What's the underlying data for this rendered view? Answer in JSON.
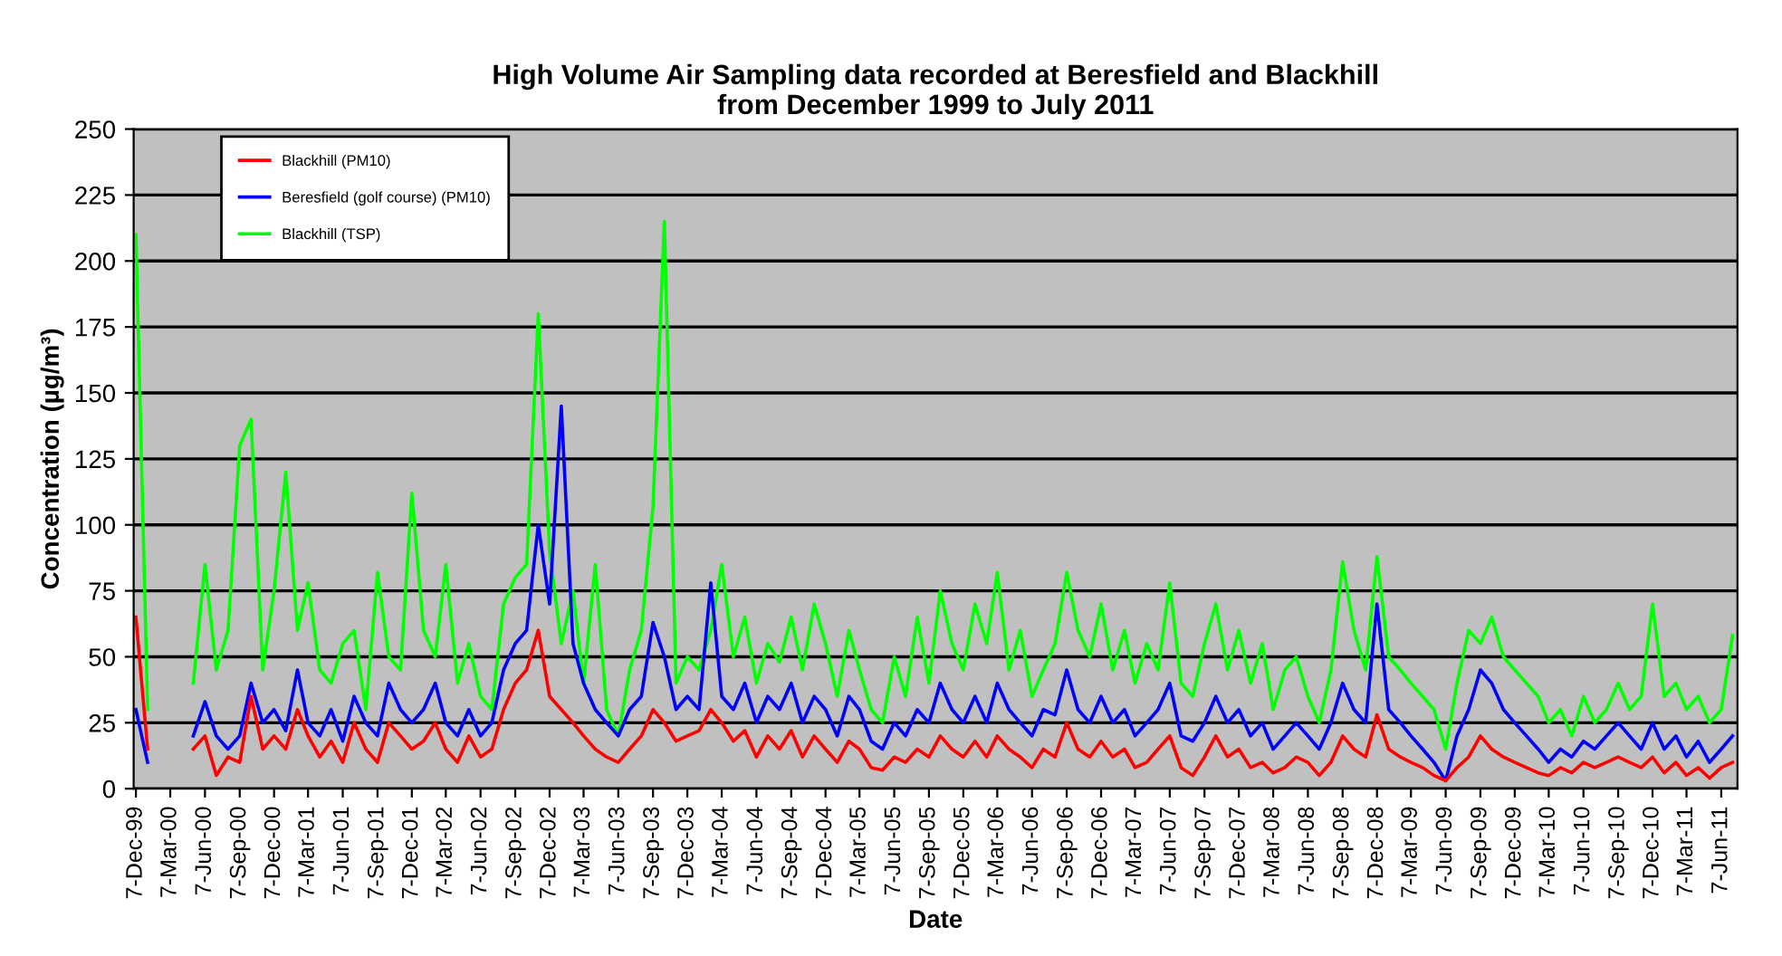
{
  "chart_data": {
    "type": "line",
    "title": "High Volume Air Sampling data recorded at Beresfield and Blackhill\nfrom December 1999 to July 2011",
    "xlabel": "Date",
    "ylabel": "Concentration (µg/m³)",
    "x": [
      "1999-12-07",
      "2000-01-07",
      "2000-02-07",
      "2000-03-07",
      "2000-04-07",
      "2000-05-07",
      "2000-06-07",
      "2000-07-07",
      "2000-08-07",
      "2000-09-07",
      "2000-10-07",
      "2000-11-07",
      "2000-12-07",
      "2001-01-07",
      "2001-02-07",
      "2001-03-07",
      "2001-04-07",
      "2001-05-07",
      "2001-06-07",
      "2001-07-07",
      "2001-08-07",
      "2001-09-07",
      "2001-10-07",
      "2001-11-07",
      "2001-12-07",
      "2002-01-07",
      "2002-02-07",
      "2002-03-07",
      "2002-04-07",
      "2002-05-07",
      "2002-06-07",
      "2002-07-07",
      "2002-08-07",
      "2002-09-07",
      "2002-10-07",
      "2002-11-07",
      "2002-12-07",
      "2003-01-07",
      "2003-02-07",
      "2003-03-07",
      "2003-04-07",
      "2003-05-07",
      "2003-06-07",
      "2003-07-07",
      "2003-08-07",
      "2003-09-07",
      "2003-10-07",
      "2003-11-07",
      "2003-12-07",
      "2004-01-07",
      "2004-02-07",
      "2004-03-07",
      "2004-04-07",
      "2004-05-07",
      "2004-06-07",
      "2004-07-07",
      "2004-08-07",
      "2004-09-07",
      "2004-10-07",
      "2004-11-07",
      "2004-12-07",
      "2005-01-07",
      "2005-02-07",
      "2005-03-07",
      "2005-04-07",
      "2005-05-07",
      "2005-06-07",
      "2005-07-07",
      "2005-08-07",
      "2005-09-07",
      "2005-10-07",
      "2005-11-07",
      "2005-12-07",
      "2006-01-07",
      "2006-02-07",
      "2006-03-07",
      "2006-04-07",
      "2006-05-07",
      "2006-06-07",
      "2006-07-07",
      "2006-08-07",
      "2006-09-07",
      "2006-10-07",
      "2006-11-07",
      "2006-12-07",
      "2007-01-07",
      "2007-02-07",
      "2007-03-07",
      "2007-04-07",
      "2007-05-07",
      "2007-06-07",
      "2007-07-07",
      "2007-08-07",
      "2007-09-07",
      "2007-10-07",
      "2007-11-07",
      "2007-12-07",
      "2008-01-07",
      "2008-02-07",
      "2008-03-07",
      "2008-04-07",
      "2008-05-07",
      "2008-06-07",
      "2008-07-07",
      "2008-08-07",
      "2008-09-07",
      "2008-10-07",
      "2008-11-07",
      "2008-12-07",
      "2009-01-07",
      "2009-02-07",
      "2009-03-07",
      "2009-04-07",
      "2009-05-07",
      "2009-06-07",
      "2009-07-07",
      "2009-08-07",
      "2009-09-07",
      "2009-10-07",
      "2009-11-07",
      "2009-12-07",
      "2010-01-07",
      "2010-02-07",
      "2010-03-07",
      "2010-04-07",
      "2010-05-07",
      "2010-06-07",
      "2010-07-07",
      "2010-08-07",
      "2010-09-07",
      "2010-10-07",
      "2010-11-07",
      "2010-12-07",
      "2011-01-07",
      "2011-02-07",
      "2011-03-07",
      "2011-04-07",
      "2011-05-07",
      "2011-06-07",
      "2011-07-07"
    ],
    "series": [
      {
        "name": "Blackhill (PM10)",
        "color": "#ff0000",
        "values": [
          65,
          15,
          null,
          null,
          null,
          15,
          20,
          5,
          12,
          10,
          35,
          15,
          20,
          15,
          30,
          20,
          12,
          18,
          10,
          25,
          15,
          10,
          25,
          20,
          15,
          18,
          25,
          15,
          10,
          20,
          12,
          15,
          30,
          40,
          45,
          60,
          35,
          30,
          25,
          20,
          15,
          12,
          10,
          15,
          20,
          30,
          25,
          18,
          20,
          22,
          30,
          25,
          18,
          22,
          12,
          20,
          15,
          22,
          12,
          20,
          15,
          10,
          18,
          15,
          8,
          7,
          12,
          10,
          15,
          12,
          20,
          15,
          12,
          18,
          12,
          20,
          15,
          12,
          8,
          15,
          12,
          25,
          15,
          12,
          18,
          12,
          15,
          8,
          10,
          15,
          20,
          8,
          5,
          12,
          20,
          12,
          15,
          8,
          10,
          6,
          8,
          12,
          10,
          5,
          10,
          20,
          15,
          12,
          28,
          15,
          12,
          10,
          8,
          5,
          3,
          8,
          12,
          20,
          15,
          12,
          10,
          8,
          6,
          5,
          8,
          6,
          10,
          8,
          10,
          12,
          10,
          8,
          12,
          6,
          10,
          5,
          8,
          4,
          8,
          10
        ]
      },
      {
        "name": "Beresfield (golf course) (PM10)",
        "color": "#0000ff",
        "values": [
          30,
          10,
          null,
          null,
          null,
          20,
          33,
          20,
          15,
          20,
          40,
          25,
          30,
          22,
          45,
          25,
          20,
          30,
          18,
          35,
          25,
          20,
          40,
          30,
          25,
          30,
          40,
          25,
          20,
          30,
          20,
          25,
          45,
          55,
          60,
          100,
          70,
          145,
          55,
          40,
          30,
          25,
          20,
          30,
          35,
          63,
          50,
          30,
          35,
          30,
          78,
          35,
          30,
          40,
          25,
          35,
          30,
          40,
          25,
          35,
          30,
          20,
          35,
          30,
          18,
          15,
          25,
          20,
          30,
          25,
          40,
          30,
          25,
          35,
          25,
          40,
          30,
          25,
          20,
          30,
          28,
          45,
          30,
          25,
          35,
          25,
          30,
          20,
          25,
          30,
          40,
          20,
          18,
          25,
          35,
          25,
          30,
          20,
          25,
          15,
          20,
          25,
          20,
          15,
          25,
          40,
          30,
          25,
          70,
          30,
          25,
          20,
          15,
          10,
          3,
          20,
          30,
          45,
          40,
          30,
          25,
          20,
          15,
          10,
          15,
          12,
          18,
          15,
          20,
          25,
          20,
          15,
          25,
          15,
          20,
          12,
          18,
          10,
          15,
          20
        ]
      },
      {
        "name": "Blackhill (TSP)",
        "color": "#00ff00",
        "values": [
          210,
          30,
          null,
          null,
          null,
          40,
          85,
          45,
          60,
          130,
          140,
          45,
          75,
          120,
          60,
          78,
          45,
          40,
          55,
          60,
          30,
          82,
          50,
          45,
          112,
          60,
          50,
          85,
          40,
          55,
          35,
          30,
          70,
          80,
          85,
          180,
          90,
          55,
          75,
          40,
          85,
          30,
          20,
          45,
          60,
          107,
          215,
          40,
          50,
          45,
          60,
          85,
          50,
          65,
          40,
          55,
          48,
          65,
          45,
          70,
          55,
          35,
          60,
          45,
          30,
          25,
          50,
          35,
          65,
          40,
          75,
          55,
          45,
          70,
          55,
          82,
          45,
          60,
          35,
          45,
          55,
          82,
          60,
          50,
          70,
          45,
          60,
          40,
          55,
          45,
          78,
          40,
          35,
          55,
          70,
          45,
          60,
          40,
          55,
          30,
          45,
          50,
          35,
          25,
          45,
          86,
          60,
          45,
          88,
          50,
          45,
          40,
          35,
          30,
          15,
          40,
          60,
          55,
          65,
          50,
          45,
          40,
          35,
          25,
          30,
          20,
          35,
          25,
          30,
          40,
          30,
          35,
          70,
          35,
          40,
          30,
          35,
          25,
          30,
          58
        ]
      }
    ],
    "xlim": [
      "1999-12-01",
      "2011-07-20"
    ],
    "xticks": [
      {
        "value": "1999-12-07",
        "label": "7-Dec-99"
      },
      {
        "value": "2000-03-07",
        "label": "7-Mar-00"
      },
      {
        "value": "2000-06-07",
        "label": "7-Jun-00"
      },
      {
        "value": "2000-09-07",
        "label": "7-Sep-00"
      },
      {
        "value": "2000-12-07",
        "label": "7-Dec-00"
      },
      {
        "value": "2001-03-07",
        "label": "7-Mar-01"
      },
      {
        "value": "2001-06-07",
        "label": "7-Jun-01"
      },
      {
        "value": "2001-09-07",
        "label": "7-Sep-01"
      },
      {
        "value": "2001-12-07",
        "label": "7-Dec-01"
      },
      {
        "value": "2002-03-07",
        "label": "7-Mar-02"
      },
      {
        "value": "2002-06-07",
        "label": "7-Jun-02"
      },
      {
        "value": "2002-09-07",
        "label": "7-Sep-02"
      },
      {
        "value": "2002-12-07",
        "label": "7-Dec-02"
      },
      {
        "value": "2003-03-07",
        "label": "7-Mar-03"
      },
      {
        "value": "2003-06-07",
        "label": "7-Jun-03"
      },
      {
        "value": "2003-09-07",
        "label": "7-Sep-03"
      },
      {
        "value": "2003-12-07",
        "label": "7-Dec-03"
      },
      {
        "value": "2004-03-07",
        "label": "7-Mar-04"
      },
      {
        "value": "2004-06-07",
        "label": "7-Jun-04"
      },
      {
        "value": "2004-09-07",
        "label": "7-Sep-04"
      },
      {
        "value": "2004-12-07",
        "label": "7-Dec-04"
      },
      {
        "value": "2005-03-07",
        "label": "7-Mar-05"
      },
      {
        "value": "2005-06-07",
        "label": "7-Jun-05"
      },
      {
        "value": "2005-09-07",
        "label": "7-Sep-05"
      },
      {
        "value": "2005-12-07",
        "label": "7-Dec-05"
      },
      {
        "value": "2006-03-07",
        "label": "7-Mar-06"
      },
      {
        "value": "2006-06-07",
        "label": "7-Jun-06"
      },
      {
        "value": "2006-09-07",
        "label": "7-Sep-06"
      },
      {
        "value": "2006-12-07",
        "label": "7-Dec-06"
      },
      {
        "value": "2007-03-07",
        "label": "7-Mar-07"
      },
      {
        "value": "2007-06-07",
        "label": "7-Jun-07"
      },
      {
        "value": "2007-09-07",
        "label": "7-Sep-07"
      },
      {
        "value": "2007-12-07",
        "label": "7-Dec-07"
      },
      {
        "value": "2008-03-07",
        "label": "7-Mar-08"
      },
      {
        "value": "2008-06-07",
        "label": "7-Jun-08"
      },
      {
        "value": "2008-09-07",
        "label": "7-Sep-08"
      },
      {
        "value": "2008-12-07",
        "label": "7-Dec-08"
      },
      {
        "value": "2009-03-07",
        "label": "7-Mar-09"
      },
      {
        "value": "2009-06-07",
        "label": "7-Jun-09"
      },
      {
        "value": "2009-09-07",
        "label": "7-Sep-09"
      },
      {
        "value": "2009-12-07",
        "label": "7-Dec-09"
      },
      {
        "value": "2010-03-07",
        "label": "7-Mar-10"
      },
      {
        "value": "2010-06-07",
        "label": "7-Jun-10"
      },
      {
        "value": "2010-09-07",
        "label": "7-Sep-10"
      },
      {
        "value": "2010-12-07",
        "label": "7-Dec-10"
      },
      {
        "value": "2011-03-07",
        "label": "7-Mar-11"
      },
      {
        "value": "2011-06-07",
        "label": "7-Jun-11"
      }
    ],
    "ylim": [
      0,
      250
    ],
    "yticks": [
      0,
      25,
      50,
      75,
      100,
      125,
      150,
      175,
      200,
      225,
      250
    ],
    "grid": "y",
    "legend": "top left",
    "marker": "none",
    "line_style": "solid"
  }
}
